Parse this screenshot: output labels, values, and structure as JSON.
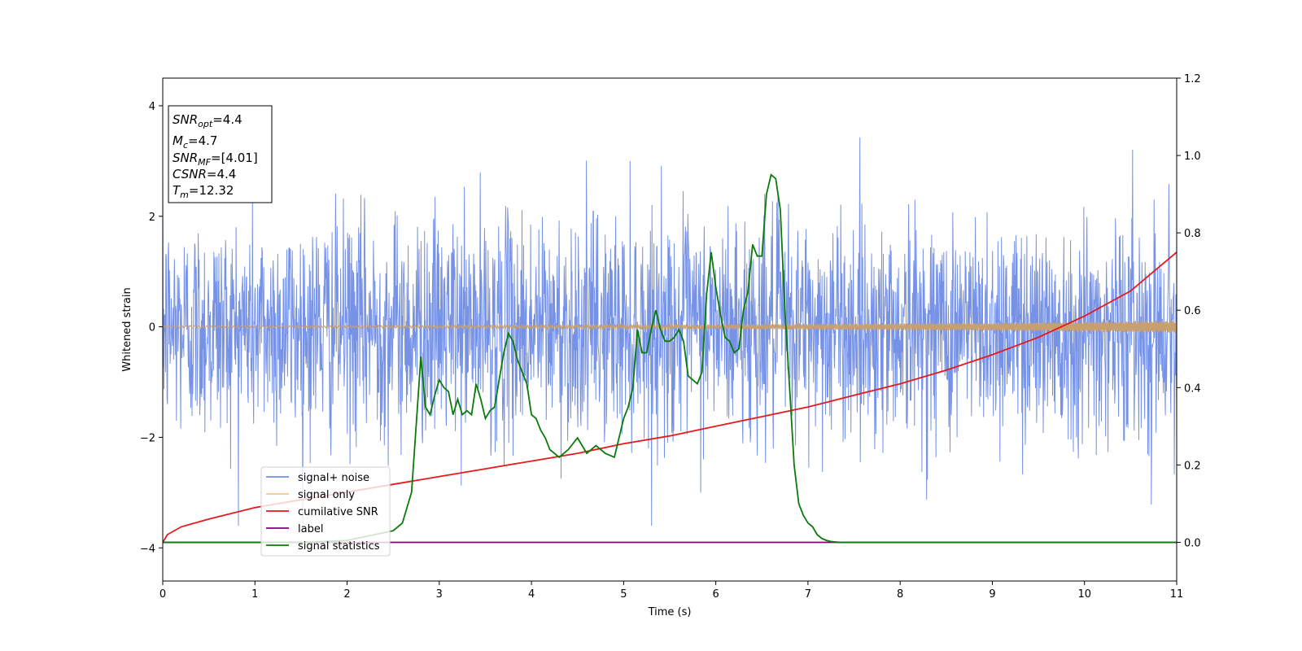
{
  "chart_data": {
    "type": "line",
    "xlabel": "Time (s)",
    "ylabel": "Whitened strain",
    "xlim": [
      0,
      11
    ],
    "ylim": [
      -4.6,
      4.5
    ],
    "y2lim": [
      -0.1,
      1.2
    ],
    "x_ticks": [
      "0",
      "1",
      "2",
      "3",
      "4",
      "5",
      "6",
      "7",
      "8",
      "9",
      "10",
      "11"
    ],
    "y_ticks": [
      "−4",
      "−2",
      "0",
      "2",
      "4"
    ],
    "y2_ticks": [
      "0.0",
      "0.2",
      "0.4",
      "0.6",
      "0.8",
      "1.0",
      "1.2"
    ],
    "colors": {
      "noise": "#6f8ce6",
      "signal": "#c8a070",
      "cumsnr": "#e41a1c",
      "label": "#800080",
      "stat": "#0a7a0a"
    },
    "legend": {
      "location": "lower-left",
      "entries": [
        "signal+ noise",
        "signal only",
        "cumilative SNR",
        "label",
        "signal statistics"
      ]
    },
    "annotation": {
      "lines": [
        {
          "base": "SNR",
          "sub": "opt",
          "value": "=4.4"
        },
        {
          "base": "M",
          "sub": "c",
          "value": "=4.7"
        },
        {
          "base": "SNR",
          "sub": "MF",
          "value": "=[4.01]"
        },
        {
          "base": "CSNR",
          "sub": "",
          "value": "=4.4"
        },
        {
          "base": "T",
          "sub": "m",
          "value": "=12.32"
        }
      ]
    },
    "series": [
      {
        "name": "signal+ noise",
        "axis": "left",
        "description": "whitened strain noise, roughly +/-2.5 with spikes",
        "envelope_max": 4.1,
        "envelope_min": -4.15
      },
      {
        "name": "signal only",
        "axis": "left",
        "amplitude_x": [
          0,
          1,
          2,
          3,
          4,
          5,
          6,
          7,
          8,
          9,
          10,
          11
        ],
        "amplitude_y": [
          0.02,
          0.02,
          0.02,
          0.025,
          0.03,
          0.035,
          0.04,
          0.05,
          0.06,
          0.07,
          0.09,
          0.11
        ]
      },
      {
        "name": "cumilative SNR",
        "axis": "right",
        "x": [
          0,
          0.05,
          0.2,
          0.5,
          1,
          1.5,
          2,
          2.5,
          3,
          3.5,
          4,
          4.5,
          5,
          5.5,
          6,
          6.5,
          7,
          7.5,
          8,
          8.5,
          9,
          9.5,
          10,
          10.5,
          11
        ],
        "y": [
          0.0,
          0.02,
          0.04,
          0.06,
          0.09,
          0.11,
          0.13,
          0.15,
          0.17,
          0.19,
          0.21,
          0.23,
          0.255,
          0.275,
          0.3,
          0.325,
          0.35,
          0.38,
          0.41,
          0.445,
          0.485,
          0.53,
          0.585,
          0.65,
          0.75
        ]
      },
      {
        "name": "label",
        "axis": "right",
        "x": [
          0,
          11
        ],
        "y": [
          0,
          0
        ]
      },
      {
        "name": "signal statistics",
        "axis": "right",
        "x": [
          0,
          0.5,
          1,
          1.5,
          2,
          2.3,
          2.5,
          2.6,
          2.7,
          2.8,
          2.85,
          2.9,
          2.95,
          3.0,
          3.05,
          3.1,
          3.15,
          3.2,
          3.25,
          3.3,
          3.35,
          3.4,
          3.45,
          3.5,
          3.55,
          3.6,
          3.65,
          3.7,
          3.75,
          3.8,
          3.85,
          3.9,
          3.95,
          4.0,
          4.05,
          4.1,
          4.15,
          4.2,
          4.3,
          4.4,
          4.5,
          4.6,
          4.7,
          4.8,
          4.9,
          5.0,
          5.05,
          5.1,
          5.15,
          5.2,
          5.25,
          5.3,
          5.35,
          5.4,
          5.45,
          5.5,
          5.55,
          5.6,
          5.65,
          5.7,
          5.75,
          5.8,
          5.85,
          5.9,
          5.95,
          6.0,
          6.05,
          6.1,
          6.15,
          6.2,
          6.25,
          6.3,
          6.35,
          6.4,
          6.45,
          6.5,
          6.55,
          6.6,
          6.65,
          6.7,
          6.75,
          6.8,
          6.85,
          6.9,
          6.95,
          7.0,
          7.05,
          7.1,
          7.15,
          7.2,
          7.25,
          7.3,
          7.35,
          7.4,
          7.5,
          7.6,
          7.7,
          7.8,
          8.0,
          8.2,
          8.5,
          9,
          10,
          11
        ],
        "y": [
          0.0,
          0.0,
          0.0,
          0.0,
          0.005,
          0.02,
          0.03,
          0.05,
          0.13,
          0.48,
          0.35,
          0.33,
          0.38,
          0.42,
          0.4,
          0.39,
          0.33,
          0.37,
          0.33,
          0.34,
          0.33,
          0.41,
          0.37,
          0.32,
          0.34,
          0.35,
          0.42,
          0.49,
          0.54,
          0.52,
          0.47,
          0.44,
          0.41,
          0.33,
          0.32,
          0.29,
          0.27,
          0.24,
          0.22,
          0.24,
          0.27,
          0.23,
          0.25,
          0.23,
          0.22,
          0.32,
          0.35,
          0.4,
          0.55,
          0.49,
          0.49,
          0.55,
          0.6,
          0.55,
          0.52,
          0.52,
          0.53,
          0.55,
          0.52,
          0.43,
          0.42,
          0.41,
          0.44,
          0.64,
          0.75,
          0.66,
          0.59,
          0.53,
          0.52,
          0.49,
          0.5,
          0.6,
          0.65,
          0.77,
          0.74,
          0.74,
          0.9,
          0.95,
          0.94,
          0.86,
          0.6,
          0.4,
          0.2,
          0.1,
          0.07,
          0.05,
          0.04,
          0.02,
          0.01,
          0.005,
          0.002,
          0.001,
          0.0,
          0.0,
          0.0,
          0.0,
          0.0,
          0.0,
          0.0,
          0.0,
          0.0,
          0.0,
          0.0,
          0.0
        ]
      }
    ]
  }
}
